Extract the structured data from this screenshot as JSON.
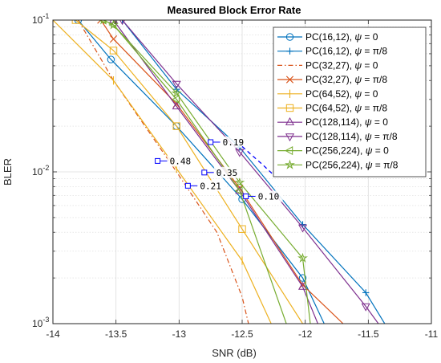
{
  "chart_data": {
    "type": "line",
    "title": "Measured Block Error Rate",
    "xlabel": "SNR (dB)",
    "ylabel": "BLER",
    "xlim": [
      -14,
      -11
    ],
    "ylim": [
      0.001,
      0.1
    ],
    "yscale": "log",
    "grid": true,
    "minor_grid": true,
    "legend_position": "top-right",
    "x_ticks": [
      -14,
      -13.5,
      -13,
      -12.5,
      -12,
      -11.5,
      -11
    ],
    "x_tick_labels": [
      "-14",
      "-13.5",
      "-13",
      "-12.5",
      "-12",
      "-11.5",
      "-11"
    ],
    "y_ticks": [
      0.1,
      0.01,
      0.001
    ],
    "y_tick_labels": [
      {
        "base": "10",
        "exp": "-1"
      },
      {
        "base": "10",
        "exp": "-2"
      },
      {
        "base": "10",
        "exp": "-3"
      }
    ],
    "series": [
      {
        "name": "PC(16,12), ψ = 0",
        "label_main": "PC(16,12), ",
        "label_psi": "ψ",
        "label_value": " = 0",
        "color": "#0072BD",
        "marker": "o",
        "dash": "solid",
        "x": [
          -13.8,
          -13.54,
          -13.02,
          -12.5,
          -12.02,
          -11.85
        ],
        "y": [
          0.1,
          0.055,
          0.02,
          0.0066,
          0.002,
          0.001
        ]
      },
      {
        "name": "PC(16,12), ψ = π/8",
        "label_main": "PC(16,12), ",
        "label_psi": "ψ",
        "label_value": " = π/8",
        "color": "#0072BD",
        "marker": "+",
        "dash": "solid",
        "x": [
          -13.45,
          -13.02,
          -12.52,
          -12.02,
          -11.52,
          -11.37
        ],
        "y": [
          0.1,
          0.035,
          0.0145,
          0.0045,
          0.0016,
          0.001
        ]
      },
      {
        "name": "PC(32,27), ψ = 0",
        "label_main": "PC(32,27), ",
        "label_psi": "ψ",
        "label_value": " = 0",
        "color": "#D95319",
        "marker": "none",
        "dash": "dashdot",
        "x": [
          -13.8,
          -13.52,
          -13.02,
          -12.7,
          -12.5,
          -12.45
        ],
        "y": [
          0.1,
          0.04,
          0.01,
          0.004,
          0.0015,
          0.001
        ]
      },
      {
        "name": "PC(32,27), ψ = π/8",
        "label_main": "PC(32,27), ",
        "label_psi": "ψ",
        "label_value": " = π/8",
        "color": "#D95319",
        "marker": "x",
        "dash": "solid",
        "x": [
          -13.62,
          -13.52,
          -13.02,
          -12.52,
          -12.02,
          -11.7
        ],
        "y": [
          0.1,
          0.075,
          0.028,
          0.0078,
          0.0018,
          0.001
        ]
      },
      {
        "name": "PC(64,52), ψ = 0",
        "label_main": "PC(64,52), ",
        "label_psi": "ψ",
        "label_value": " = 0",
        "color": "#EDB120",
        "marker": "|",
        "dash": "solid",
        "x": [
          -14,
          -13.52,
          -13.02,
          -12.5,
          -12.27
        ],
        "y": [
          0.1,
          0.04,
          0.0105,
          0.0026,
          0.001
        ]
      },
      {
        "name": "PC(64,52), ψ = π/8",
        "label_main": "PC(64,52), ",
        "label_psi": "ψ",
        "label_value": " = π/8",
        "color": "#EDB120",
        "marker": "square",
        "dash": "solid",
        "x": [
          -13.82,
          -13.52,
          -13.02,
          -12.5,
          -12.02,
          -12.0
        ],
        "y": [
          0.1,
          0.063,
          0.02,
          0.0042,
          0.001,
          0.001
        ]
      },
      {
        "name": "PC(128,114), ψ = 0",
        "label_main": "PC(128,114), ",
        "label_psi": "ψ",
        "label_value": " = 0",
        "color": "#7E2F8E",
        "marker": "triangle-up",
        "dash": "solid",
        "x": [
          -13.52,
          -13.02,
          -12.52,
          -12.02,
          -11.9
        ],
        "y": [
          0.1,
          0.027,
          0.0075,
          0.00175,
          0.001
        ]
      },
      {
        "name": "PC(128,114), ψ = π/8",
        "label_main": "PC(128,114), ",
        "label_psi": "ψ",
        "label_value": " = π/8",
        "color": "#7E2F8E",
        "marker": "triangle-down",
        "dash": "solid",
        "x": [
          -13.45,
          -13.02,
          -12.52,
          -12.02,
          -11.52,
          -11.42
        ],
        "y": [
          0.1,
          0.038,
          0.0135,
          0.0043,
          0.0013,
          0.001
        ]
      },
      {
        "name": "PC(256,224), ψ = 0",
        "label_main": "PC(256,224), ",
        "label_psi": "ψ",
        "label_value": " = 0",
        "color": "#77AC30",
        "marker": "triangle-left",
        "dash": "solid",
        "x": [
          -13.6,
          -13.52,
          -13.02,
          -12.52,
          -12.15
        ],
        "y": [
          0.1,
          0.093,
          0.03,
          0.0075,
          0.001
        ]
      },
      {
        "name": "PC(256,224), ψ = π/8",
        "label_main": "PC(256,224), ",
        "label_psi": "ψ",
        "label_value": " = π/8",
        "color": "#77AC30",
        "marker": "star",
        "dash": "solid",
        "x": [
          -13.6,
          -13.52,
          -13.02,
          -12.52,
          -12.02,
          -11.96
        ],
        "y": [
          0.1,
          0.093,
          0.033,
          0.0085,
          0.0027,
          0.001
        ]
      }
    ],
    "annotations": [
      {
        "text": "0.19",
        "x": -12.75,
        "y": 0.0157
      },
      {
        "text": "0.48",
        "x": -13.17,
        "y": 0.0118
      },
      {
        "text": "0.35",
        "x": -12.8,
        "y": 0.0099
      },
      {
        "text": "0.21",
        "x": -12.93,
        "y": 0.0081
      },
      {
        "text": "0.10",
        "x": -12.47,
        "y": 0.0069
      }
    ],
    "dashed_connector": {
      "color": "#0000ff",
      "x": [
        -12.5,
        -12.42,
        -12.34,
        -12.26
      ],
      "y": [
        0.0147,
        0.0128,
        0.0112,
        0.0097
      ]
    }
  }
}
